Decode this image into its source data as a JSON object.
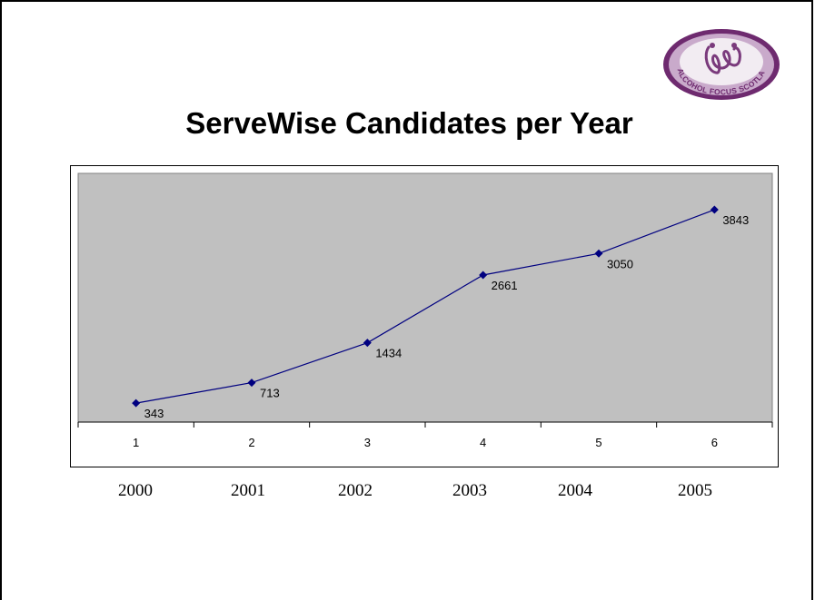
{
  "logo": {
    "text": "ALCOHOL FOCUS SCOTLAND",
    "colors": {
      "outer": "#6e2a6f",
      "ring": "#c9aacb",
      "inner": "#f2ecf2",
      "figure": "#7a3a7c"
    }
  },
  "title": "ServeWise Candidates per Year",
  "chart_data": {
    "type": "line",
    "title": "ServeWise Candidates per Year",
    "categories": [
      "1",
      "2",
      "3",
      "4",
      "5",
      "6"
    ],
    "series": [
      {
        "values": [
          343,
          713,
          1434,
          2661,
          3050,
          3843
        ],
        "color": "#000080"
      }
    ],
    "data_labels": [
      "343",
      "713",
      "1434",
      "2661",
      "3050",
      "3843"
    ],
    "ylim": [
      0,
      4500
    ],
    "y_axis_visible": false,
    "plot_background": "#c0c0c0",
    "grid": false,
    "legend": "none"
  },
  "years": [
    "2000",
    "2001",
    "2002",
    "2003",
    "2004",
    "2005"
  ]
}
